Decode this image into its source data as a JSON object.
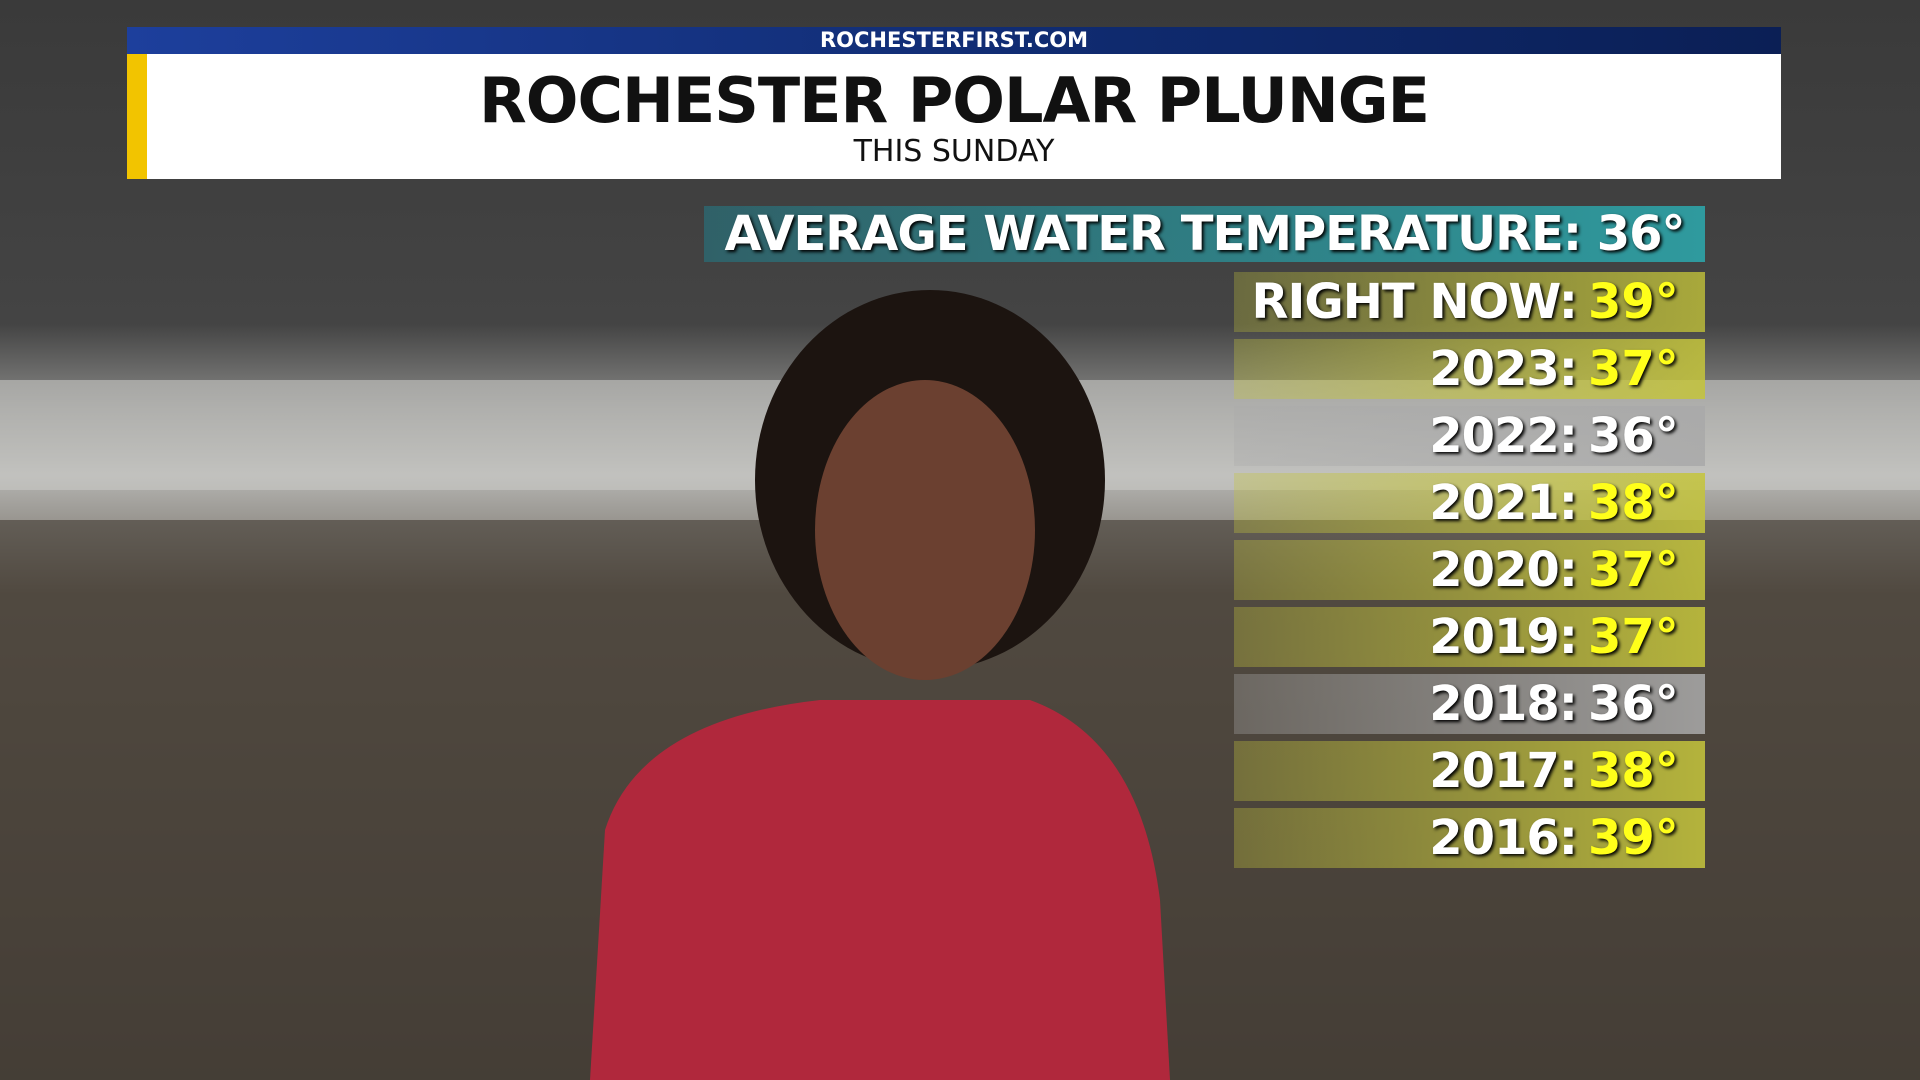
{
  "header": {
    "site": "ROCHESTERFIRST.COM",
    "title": "ROCHESTER POLAR PLUNGE",
    "subtitle": "THIS SUNDAY"
  },
  "average": "AVERAGE WATER TEMPERATURE: 36°",
  "rows": [
    {
      "label": "RIGHT NOW:",
      "value": "39°",
      "color": "#b8b83a"
    },
    {
      "label": "2023:",
      "value": "37°",
      "color": "#c4c43c"
    },
    {
      "label": "2022:",
      "value": "36°",
      "color": "#a9a9a9"
    },
    {
      "label": "2021:",
      "value": "38°",
      "color": "#c4c43c"
    },
    {
      "label": "2020:",
      "value": "37°",
      "color": "#c4c43c"
    },
    {
      "label": "2019:",
      "value": "37°",
      "color": "#c4c43c"
    },
    {
      "label": "2018:",
      "value": "36°",
      "color": "#a9a9a9"
    },
    {
      "label": "2017:",
      "value": "38°",
      "color": "#c4c43c"
    },
    {
      "label": "2016:",
      "value": "39°",
      "color": "#c4c43c"
    }
  ]
}
